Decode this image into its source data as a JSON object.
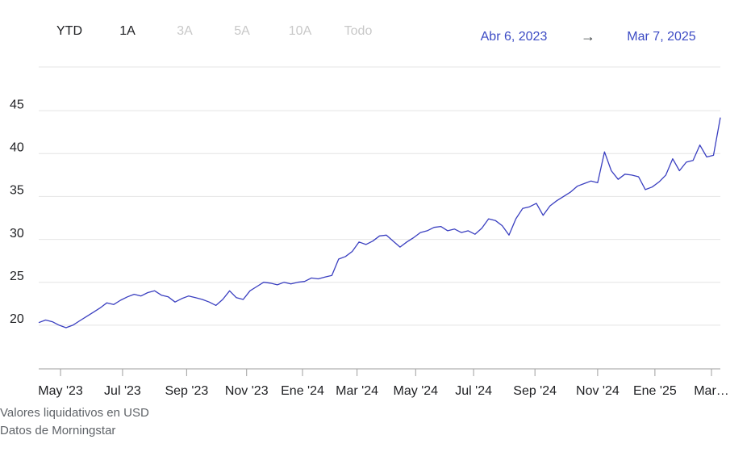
{
  "range_buttons": [
    {
      "label": "YTD",
      "enabled": true
    },
    {
      "label": "1A",
      "enabled": true
    },
    {
      "label": "3A",
      "enabled": false
    },
    {
      "label": "5A",
      "enabled": false
    },
    {
      "label": "10A",
      "enabled": false
    },
    {
      "label": "Todo",
      "enabled": false
    }
  ],
  "date_range": {
    "from": "Abr 6, 2023",
    "arrow": "→",
    "to": "Mar 7, 2025"
  },
  "chart_data": {
    "type": "line",
    "series": [
      {
        "name": "Valores liquidativos",
        "color": "#3a3fc0",
        "values": [
          20.3,
          20.6,
          20.4,
          20.0,
          19.7,
          20.0,
          20.5,
          21.0,
          21.5,
          22.0,
          22.6,
          22.4,
          22.9,
          23.3,
          23.6,
          23.4,
          23.8,
          24.0,
          23.5,
          23.3,
          22.7,
          23.1,
          23.4,
          23.2,
          23.0,
          22.7,
          22.3,
          23.0,
          24.0,
          23.2,
          23.0,
          24.0,
          24.5,
          25.0,
          24.9,
          24.7,
          25.0,
          24.8,
          25.0,
          25.1,
          25.5,
          25.4,
          25.6,
          25.8,
          27.7,
          28.0,
          28.6,
          29.7,
          29.4,
          29.8,
          30.4,
          30.5,
          29.8,
          29.1,
          29.7,
          30.2,
          30.8,
          31.0,
          31.4,
          31.5,
          31.0,
          31.2,
          30.8,
          31.0,
          30.6,
          31.3,
          32.4,
          32.2,
          31.6,
          30.5,
          32.4,
          33.6,
          33.8,
          34.2,
          32.8,
          33.9,
          34.5,
          35.0,
          35.5,
          36.2,
          36.5,
          36.8,
          36.6,
          40.2,
          38.0,
          37.0,
          37.6,
          37.5,
          37.3,
          35.8,
          36.1,
          36.7,
          37.5,
          39.4,
          38.0,
          39.0,
          39.2,
          41.0,
          39.6,
          39.8,
          44.2
        ]
      }
    ],
    "xlim": [
      0,
      100
    ],
    "xticks": [
      {
        "value": 3.2,
        "label": "May '23"
      },
      {
        "value": 12.3,
        "label": "Jul '23"
      },
      {
        "value": 21.7,
        "label": "Sep '23"
      },
      {
        "value": 30.5,
        "label": "Nov '23"
      },
      {
        "value": 38.7,
        "label": "Ene '24"
      },
      {
        "value": 46.7,
        "label": "Mar '24"
      },
      {
        "value": 55.3,
        "label": "May '24"
      },
      {
        "value": 63.8,
        "label": "Jul '24"
      },
      {
        "value": 72.8,
        "label": "Sep '24"
      },
      {
        "value": 82.0,
        "label": "Nov '24"
      },
      {
        "value": 90.4,
        "label": "Ene '25"
      },
      {
        "value": 98.7,
        "label": "Mar…"
      }
    ],
    "ylim": [
      15,
      50
    ],
    "yticks": [
      20,
      25,
      30,
      35,
      40,
      45
    ],
    "grid": true
  },
  "footer": {
    "note": "Valores liquidativos en USD",
    "source": "Datos de Morningstar"
  }
}
